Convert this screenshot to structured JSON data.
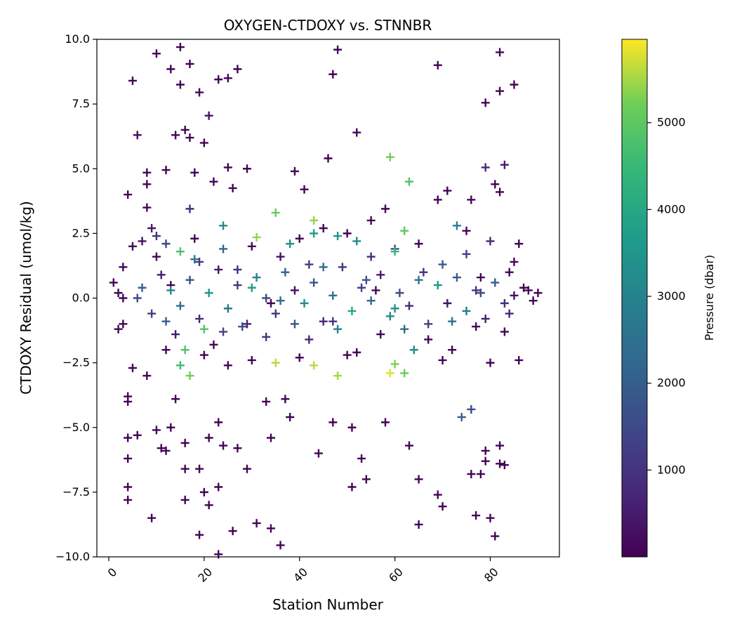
{
  "chart_data": {
    "type": "scatter",
    "title": "OXYGEN-CTDOXY vs. STNNBR",
    "xlabel": "Station Number",
    "ylabel": "CTDOXY Residual (umol/kg)",
    "xlim": [
      -2.5,
      94.5
    ],
    "ylim": [
      -10,
      10
    ],
    "xticks": [
      0,
      20,
      40,
      60,
      80
    ],
    "xtick_labels": [
      "0",
      "20",
      "40",
      "60",
      "80"
    ],
    "yticks": [
      -10,
      -7.5,
      -5,
      -2.5,
      0,
      2.5,
      5,
      7.5,
      10
    ],
    "ytick_labels": [
      "−10.0",
      "−7.5",
      "−5.0",
      "−2.5",
      "0.0",
      "2.5",
      "5.0",
      "7.5",
      "10.0"
    ],
    "xtick_rotation": 45,
    "marker": "+",
    "grid": false,
    "colorbar": {
      "label": "Pressure (dbar)",
      "colormap": "viridis",
      "range": [
        0,
        5960
      ],
      "ticks": [
        1000,
        2000,
        3000,
        4000,
        5000
      ],
      "tick_labels": [
        "1000",
        "2000",
        "3000",
        "4000",
        "5000"
      ]
    },
    "series": [
      {
        "columns": [
          "station",
          "residual",
          "pressure"
        ],
        "points": [
          [
            5,
            8.4,
            60
          ],
          [
            6,
            6.3,
            200
          ],
          [
            10,
            9.45,
            50
          ],
          [
            13,
            8.85,
            60
          ],
          [
            15,
            9.7,
            50
          ],
          [
            15,
            8.25,
            60
          ],
          [
            17,
            9.05,
            50
          ],
          [
            19,
            7.95,
            80
          ],
          [
            20,
            6.0,
            60
          ],
          [
            21,
            7.05,
            300
          ],
          [
            23,
            8.45,
            60
          ],
          [
            25,
            8.5,
            60
          ],
          [
            27,
            8.85,
            50
          ],
          [
            47,
            8.65,
            60
          ],
          [
            48,
            9.6,
            50
          ],
          [
            52,
            6.4,
            60
          ],
          [
            69,
            9.0,
            60
          ],
          [
            79,
            7.55,
            80
          ],
          [
            82,
            9.5,
            60
          ],
          [
            82,
            8.0,
            60
          ],
          [
            85,
            8.25,
            60
          ],
          [
            14,
            6.3,
            60
          ],
          [
            17,
            6.2,
            60
          ],
          [
            16,
            6.5,
            60
          ],
          [
            4,
            4.0,
            60
          ],
          [
            8,
            4.85,
            60
          ],
          [
            8,
            4.4,
            60
          ],
          [
            12,
            4.95,
            60
          ],
          [
            18,
            4.85,
            60
          ],
          [
            25,
            5.05,
            60
          ],
          [
            29,
            5.0,
            60
          ],
          [
            39,
            4.9,
            60
          ],
          [
            46,
            5.4,
            60
          ],
          [
            59,
            5.45,
            5200
          ],
          [
            63,
            4.5,
            4800
          ],
          [
            71,
            4.15,
            60
          ],
          [
            79,
            5.05,
            800
          ],
          [
            83,
            5.15,
            500
          ],
          [
            81,
            4.4,
            60
          ],
          [
            82,
            4.1,
            60
          ],
          [
            26,
            4.25,
            60
          ],
          [
            41,
            4.2,
            60
          ],
          [
            22,
            4.5,
            60
          ],
          [
            17,
            3.45,
            900
          ],
          [
            35,
            3.3,
            5100
          ],
          [
            43,
            3.0,
            5400
          ],
          [
            62,
            2.6,
            5000
          ],
          [
            58,
            3.45,
            60
          ],
          [
            69,
            3.8,
            60
          ],
          [
            76,
            3.8,
            60
          ],
          [
            31,
            2.35,
            5400
          ],
          [
            43,
            2.5,
            3800
          ],
          [
            48,
            2.4,
            3500
          ],
          [
            60,
            1.8,
            4500
          ],
          [
            73,
            2.8,
            2800
          ],
          [
            15,
            1.8,
            4800
          ],
          [
            15,
            -2.6,
            4600
          ],
          [
            16,
            -2.0,
            4800
          ],
          [
            17,
            -3.0,
            5200
          ],
          [
            20,
            -1.2,
            4900
          ],
          [
            35,
            -2.5,
            5600
          ],
          [
            43,
            -2.6,
            5600
          ],
          [
            48,
            -3.0,
            5500
          ],
          [
            60,
            -2.55,
            5300
          ],
          [
            62,
            -2.9,
            5200
          ],
          [
            59,
            -2.9,
            5800
          ],
          [
            64,
            -2.0,
            3200
          ],
          [
            24,
            2.8,
            3200
          ],
          [
            38,
            2.1,
            3400
          ],
          [
            52,
            2.2,
            3100
          ],
          [
            4,
            -3.8,
            60
          ],
          [
            4,
            -4.0,
            60
          ],
          [
            4,
            -5.4,
            60
          ],
          [
            4,
            -6.2,
            60
          ],
          [
            4,
            -7.3,
            60
          ],
          [
            4,
            -7.8,
            60
          ],
          [
            9,
            -8.5,
            60
          ],
          [
            11,
            -5.8,
            60
          ],
          [
            12,
            -5.9,
            60
          ],
          [
            13,
            -5.0,
            60
          ],
          [
            16,
            -5.6,
            60
          ],
          [
            16,
            -6.6,
            60
          ],
          [
            16,
            -7.8,
            60
          ],
          [
            19,
            -6.6,
            60
          ],
          [
            19,
            -9.15,
            60
          ],
          [
            20,
            -7.5,
            60
          ],
          [
            21,
            -8.0,
            60
          ],
          [
            23,
            -4.8,
            60
          ],
          [
            23,
            -7.3,
            60
          ],
          [
            23,
            -9.9,
            60
          ],
          [
            24,
            -5.7,
            60
          ],
          [
            26,
            -9.0,
            60
          ],
          [
            27,
            -5.8,
            60
          ],
          [
            29,
            -6.6,
            60
          ],
          [
            31,
            -8.7,
            60
          ],
          [
            34,
            -5.4,
            60
          ],
          [
            34,
            -8.9,
            60
          ],
          [
            36,
            -9.55,
            60
          ],
          [
            38,
            -4.6,
            60
          ],
          [
            44,
            -6.0,
            60
          ],
          [
            51,
            -7.3,
            60
          ],
          [
            53,
            -6.2,
            60
          ],
          [
            54,
            -7.0,
            60
          ],
          [
            65,
            -7.0,
            60
          ],
          [
            65,
            -8.75,
            60
          ],
          [
            69,
            -7.6,
            60
          ],
          [
            70,
            -8.05,
            60
          ],
          [
            76,
            -6.8,
            60
          ],
          [
            77,
            -8.4,
            60
          ],
          [
            78,
            -6.8,
            60
          ],
          [
            79,
            -5.9,
            60
          ],
          [
            80,
            -8.5,
            60
          ],
          [
            81,
            -9.2,
            60
          ],
          [
            82,
            -6.4,
            60
          ],
          [
            83,
            -6.45,
            60
          ],
          [
            79,
            -6.3,
            60
          ],
          [
            82,
            -5.7,
            60
          ],
          [
            6,
            -5.3,
            60
          ],
          [
            10,
            -5.1,
            60
          ],
          [
            63,
            -5.7,
            60
          ],
          [
            51,
            -5.0,
            60
          ],
          [
            47,
            -4.8,
            60
          ],
          [
            58,
            -4.8,
            60
          ],
          [
            33,
            -4.0,
            60
          ],
          [
            37,
            -3.9,
            60
          ],
          [
            74,
            -4.6,
            2100
          ],
          [
            76,
            -4.3,
            1500
          ],
          [
            21,
            -5.4,
            60
          ],
          [
            14,
            -3.9,
            60
          ],
          [
            8,
            -3.0,
            60
          ],
          [
            2,
            -1.2,
            60
          ],
          [
            3,
            -1.0,
            60
          ],
          [
            1,
            0.6,
            60
          ],
          [
            2,
            0.2,
            80
          ],
          [
            88,
            0.3,
            60
          ],
          [
            89,
            -0.1,
            60
          ],
          [
            90,
            0.2,
            60
          ],
          [
            86,
            -2.4,
            60
          ],
          [
            86,
            2.1,
            60
          ],
          [
            84,
            1.0,
            60
          ],
          [
            3,
            1.2,
            60
          ],
          [
            5,
            2.0,
            80
          ],
          [
            7,
            2.2,
            300
          ],
          [
            8,
            3.5,
            60
          ],
          [
            9,
            2.7,
            500
          ],
          [
            10,
            2.4,
            1000
          ],
          [
            12,
            2.1,
            1400
          ],
          [
            12,
            -2.0,
            60
          ],
          [
            14,
            -1.4,
            500
          ],
          [
            18,
            2.3,
            60
          ],
          [
            19,
            1.4,
            1200
          ],
          [
            22,
            -1.8,
            60
          ],
          [
            24,
            1.9,
            2200
          ],
          [
            27,
            1.1,
            900
          ],
          [
            28,
            -1.1,
            1500
          ],
          [
            30,
            2.0,
            60
          ],
          [
            33,
            -1.5,
            1000
          ],
          [
            36,
            1.6,
            300
          ],
          [
            39,
            -1.0,
            1800
          ],
          [
            40,
            2.3,
            60
          ],
          [
            42,
            -1.6,
            700
          ],
          [
            45,
            1.2,
            2400
          ],
          [
            47,
            -0.9,
            1100
          ],
          [
            50,
            2.5,
            60
          ],
          [
            52,
            -2.1,
            60
          ],
          [
            55,
            1.6,
            800
          ],
          [
            57,
            -1.4,
            60
          ],
          [
            60,
            1.9,
            1500
          ],
          [
            62,
            -1.2,
            2300
          ],
          [
            65,
            2.1,
            60
          ],
          [
            67,
            -1.6,
            60
          ],
          [
            70,
            1.3,
            1900
          ],
          [
            72,
            -2.0,
            60
          ],
          [
            75,
            1.7,
            1300
          ],
          [
            77,
            -1.1,
            60
          ],
          [
            80,
            2.2,
            700
          ],
          [
            83,
            -1.3,
            60
          ],
          [
            85,
            1.4,
            60
          ],
          [
            7,
            0.4,
            2000
          ],
          [
            9,
            -0.6,
            1200
          ],
          [
            11,
            0.9,
            500
          ],
          [
            13,
            0.3,
            3000
          ],
          [
            15,
            -0.3,
            2400
          ],
          [
            17,
            0.7,
            1700
          ],
          [
            19,
            -0.8,
            800
          ],
          [
            21,
            0.2,
            3500
          ],
          [
            23,
            1.1,
            400
          ],
          [
            25,
            -0.4,
            2700
          ],
          [
            27,
            0.5,
            1100
          ],
          [
            29,
            -1.0,
            600
          ],
          [
            31,
            0.8,
            2900
          ],
          [
            33,
            0.0,
            1500
          ],
          [
            35,
            -0.6,
            900
          ],
          [
            37,
            1.0,
            2100
          ],
          [
            39,
            0.3,
            300
          ],
          [
            41,
            -0.2,
            3300
          ],
          [
            43,
            0.6,
            1800
          ],
          [
            45,
            -0.9,
            700
          ],
          [
            47,
            0.1,
            2500
          ],
          [
            49,
            1.2,
            1000
          ],
          [
            51,
            -0.5,
            4000
          ],
          [
            53,
            0.4,
            1300
          ],
          [
            55,
            -0.1,
            2200
          ],
          [
            57,
            0.9,
            500
          ],
          [
            59,
            -0.7,
            3100
          ],
          [
            61,
            0.2,
            1600
          ],
          [
            63,
            -0.3,
            800
          ],
          [
            65,
            0.7,
            2600
          ],
          [
            67,
            -1.0,
            1200
          ],
          [
            69,
            0.5,
            3600
          ],
          [
            71,
            -0.2,
            400
          ],
          [
            73,
            0.8,
            1900
          ],
          [
            75,
            -0.5,
            2800
          ],
          [
            77,
            0.3,
            1000
          ],
          [
            79,
            -0.8,
            600
          ],
          [
            81,
            0.6,
            2000
          ],
          [
            83,
            -0.2,
            900
          ],
          [
            85,
            0.1,
            300
          ],
          [
            87,
            0.4,
            60
          ],
          [
            6,
            0.0,
            1500
          ],
          [
            12,
            -0.9,
            2000
          ],
          [
            18,
            1.5,
            2600
          ],
          [
            24,
            -1.3,
            1400
          ],
          [
            30,
            0.4,
            3800
          ],
          [
            36,
            -0.1,
            2200
          ],
          [
            42,
            1.3,
            1200
          ],
          [
            48,
            -1.2,
            2900
          ],
          [
            54,
            0.7,
            1700
          ],
          [
            60,
            -0.4,
            3400
          ],
          [
            66,
            1.0,
            900
          ],
          [
            72,
            -0.9,
            2400
          ],
          [
            78,
            0.2,
            1500
          ],
          [
            84,
            -0.6,
            700
          ],
          [
            10,
            1.6,
            60
          ],
          [
            20,
            -2.2,
            60
          ],
          [
            30,
            -2.4,
            60
          ],
          [
            40,
            -2.3,
            60
          ],
          [
            50,
            -2.2,
            60
          ],
          [
            70,
            -2.4,
            60
          ],
          [
            80,
            -2.5,
            60
          ],
          [
            5,
            -2.7,
            60
          ],
          [
            25,
            -2.6,
            60
          ],
          [
            45,
            2.7,
            60
          ],
          [
            55,
            3.0,
            60
          ],
          [
            75,
            2.6,
            60
          ],
          [
            13,
            0.5,
            60
          ],
          [
            34,
            -0.2,
            60
          ],
          [
            56,
            0.3,
            60
          ],
          [
            78,
            0.8,
            60
          ],
          [
            3,
            0.0,
            60
          ]
        ]
      }
    ]
  }
}
